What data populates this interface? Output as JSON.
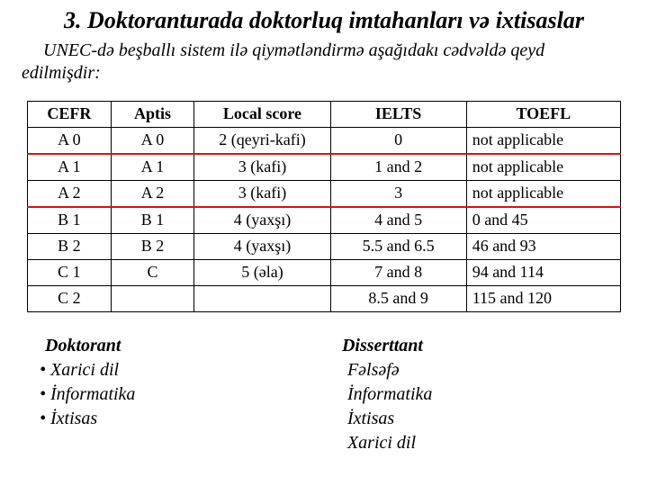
{
  "title": "3. Doktoranturada doktorluq imtahanları və ixtisaslar",
  "subtitle": "UNEC-də beşballı sistem ilə qiymətləndirmə aşağıdakı cədvəldə qeyd edilmişdir:",
  "table": {
    "headers": [
      "CEFR",
      "Aptis",
      "Local score",
      "IELTS",
      "TOEFL"
    ],
    "rows": [
      {
        "cells": [
          "A 0",
          "A 0",
          "2 (qeyri-kafi)",
          "0",
          "not applicable"
        ],
        "highlight": "none"
      },
      {
        "cells": [
          "A 1",
          "A 1",
          "3 (kafi)",
          "1 and 2",
          "not applicable"
        ],
        "highlight": "top"
      },
      {
        "cells": [
          "A 2",
          "A 2",
          "3 (kafi)",
          "3",
          "not applicable"
        ],
        "highlight": "bot"
      },
      {
        "cells": [
          "B 1",
          "B 1",
          "4 (yaxşı)",
          "4 and 5",
          "0 and 45"
        ],
        "highlight": "none"
      },
      {
        "cells": [
          "B 2",
          "B 2",
          "4 (yaxşı)",
          "5.5 and 6.5",
          "46 and 93"
        ],
        "highlight": "none"
      },
      {
        "cells": [
          "C 1",
          "C",
          "5 (əla)",
          "7 and 8",
          "94 and 114"
        ],
        "highlight": "none"
      },
      {
        "cells": [
          "C 2",
          "",
          "",
          "8.5 and 9",
          "115 and 120"
        ],
        "highlight": "none"
      }
    ]
  },
  "left": {
    "head": "Doktorant",
    "items": [
      "Xarici dil",
      "İnformatika",
      "İxtisas"
    ]
  },
  "right": {
    "head": "Disserttant",
    "items": [
      "Fəlsəfə",
      "İnformatika",
      "İxtisas",
      "Xarici dil"
    ]
  }
}
